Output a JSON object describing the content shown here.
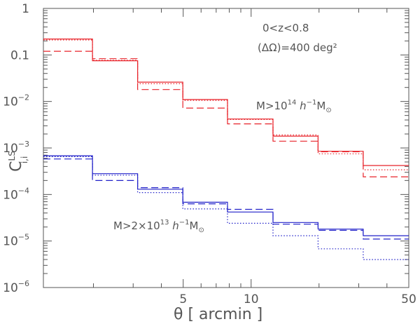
{
  "chart_data": {
    "type": "line",
    "subtype": "step",
    "xscale": "log",
    "yscale": "log",
    "xlim": [
      1.2,
      50
    ],
    "ylim": [
      1e-06,
      1
    ],
    "xlabel": "θ [ arcmin ]",
    "ylabel": "C^{LS}_{i,i}",
    "x_tick_values": [
      5,
      10,
      50
    ],
    "x_tick_labels": [
      "5",
      "10",
      "50"
    ],
    "y_tick_values": [
      1,
      0.1,
      0.01,
      0.001,
      0.0001,
      1e-05,
      1e-06
    ],
    "y_tick_labels": [
      {
        "base": "1",
        "exp": ""
      },
      {
        "base": "0.1",
        "exp": ""
      },
      {
        "base": "10",
        "exp": "−2"
      },
      {
        "base": "10",
        "exp": "−3"
      },
      {
        "base": "10",
        "exp": "−4"
      },
      {
        "base": "10",
        "exp": "−5"
      },
      {
        "base": "10",
        "exp": "−6"
      }
    ],
    "bin_edges": [
      1.2,
      1.98,
      3.14,
      4.98,
      7.86,
      12.5,
      19.8,
      31.4,
      50
    ],
    "series": [
      {
        "name": "high-mass solid",
        "group": "M>10^14",
        "color": "#e8232a",
        "style": "solid",
        "values": [
          0.22,
          0.075,
          0.026,
          0.011,
          0.0042,
          0.0018,
          0.00085,
          0.00042
        ]
      },
      {
        "name": "high-mass dotted",
        "group": "M>10^14",
        "color": "#e8232a",
        "style": "dotted",
        "values": [
          0.21,
          0.077,
          0.024,
          0.0105,
          0.0041,
          0.0019,
          0.00075,
          0.00034
        ]
      },
      {
        "name": "high-mass dashed",
        "group": "M>10^14",
        "color": "#e8232a",
        "style": "dashed",
        "values": [
          0.12,
          0.083,
          0.018,
          0.0072,
          0.0033,
          0.0014,
          0.00083,
          0.00024
        ]
      },
      {
        "name": "low-mass solid",
        "group": "M>2x10^13",
        "color": "#2121c9",
        "style": "solid",
        "values": [
          0.00068,
          0.00028,
          0.00013,
          6.8e-05,
          4.2e-05,
          2.5e-05,
          1.8e-05,
          1.3e-05
        ]
      },
      {
        "name": "low-mass dotted",
        "group": "M>2x10^13",
        "color": "#2121c9",
        "style": "dotted",
        "values": [
          0.00065,
          0.00026,
          0.00011,
          4.9e-05,
          2.4e-05,
          1.3e-05,
          6.8e-06,
          4e-06
        ]
      },
      {
        "name": "low-mass dashed",
        "group": "M>2x10^13",
        "color": "#2121c9",
        "style": "dashed",
        "values": [
          0.00058,
          0.0002,
          0.00014,
          6.3e-05,
          4.8e-05,
          2.3e-05,
          1.7e-05,
          1.1e-05
        ]
      }
    ],
    "annotations": {
      "redshift": "0<z<0.8",
      "area": "(ΔΩ)=400 deg²",
      "high_mass_label": {
        "prefix": "M>10",
        "exp": "14",
        "mid": " h",
        "exp2": "−1",
        "suffix": "M",
        "sub": "⊙"
      },
      "low_mass_label": {
        "prefix": "M>2×10",
        "exp": "13",
        "mid": " h",
        "exp2": "−1",
        "suffix": "M",
        "sub": "⊙"
      }
    }
  }
}
